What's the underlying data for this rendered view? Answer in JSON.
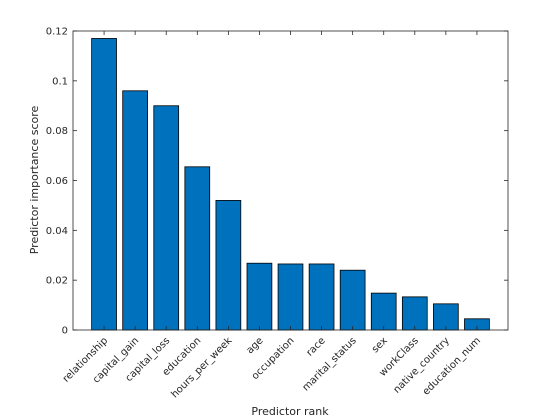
{
  "chart_data": {
    "type": "bar",
    "xlabel": "Predictor rank",
    "ylabel": "Predictor importance score",
    "categories": [
      "relationship",
      "capital_gain",
      "capital_loss",
      "education",
      "hours_per_week",
      "age",
      "occupation",
      "race",
      "marital_status",
      "sex",
      "workClass",
      "native_country",
      "education_num"
    ],
    "values": [
      0.117,
      0.096,
      0.09,
      0.0655,
      0.052,
      0.0268,
      0.0265,
      0.0265,
      0.024,
      0.0148,
      0.0133,
      0.0105,
      0.0045
    ],
    "ylim": [
      0,
      0.12
    ],
    "yticks": [
      0,
      0.02,
      0.04,
      0.06,
      0.08,
      0.1,
      0.12
    ],
    "ytick_labels": [
      "0",
      "0.02",
      "0.04",
      "0.06",
      "0.08",
      "0.1",
      "0.12"
    ],
    "bar_color": "#0072BD",
    "grid": false
  }
}
